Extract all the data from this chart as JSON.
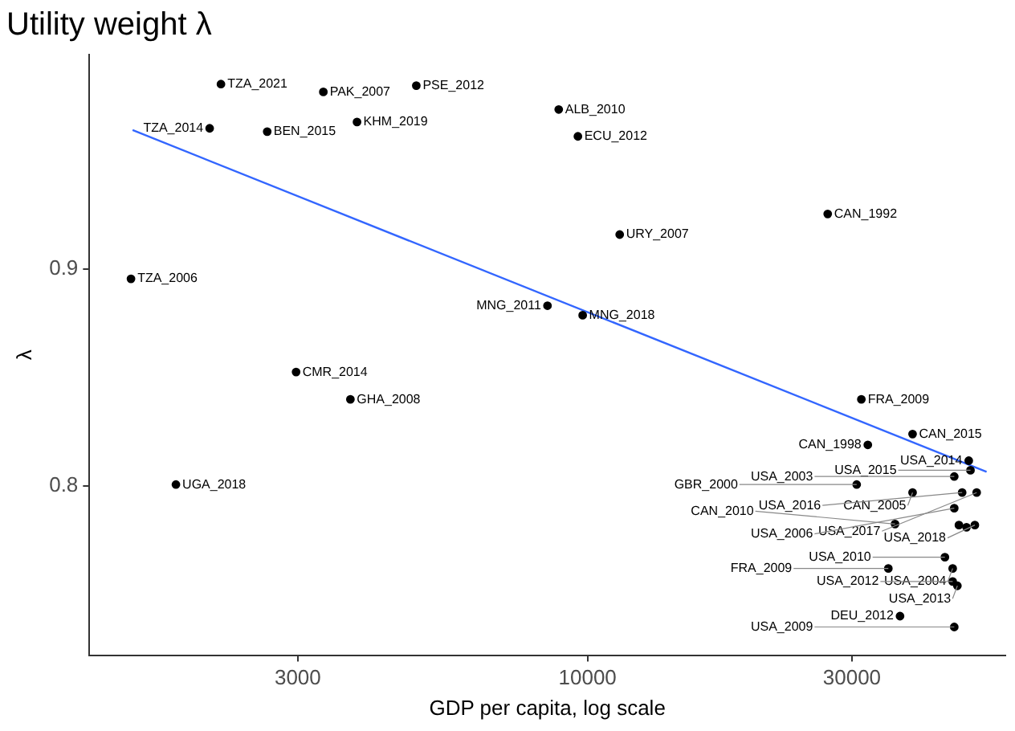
{
  "chart_data": {
    "type": "scatter",
    "title": "Utility weight λ",
    "xlabel": "GDP per capita, log scale",
    "ylabel": "λ",
    "log": "x",
    "xlim": [
      1262,
      56760
    ],
    "ylim": [
      0.722,
      0.999
    ],
    "xticks": [
      3000,
      10000,
      30000
    ],
    "yticks": [
      0.8,
      0.9
    ],
    "grid": false,
    "legend": false,
    "series": [
      {
        "marker": "circle",
        "color": "#000000",
        "x": [
          2180,
          3336,
          4909,
          2080,
          2642,
          3837,
          8872,
          9608,
          11430,
          27130,
          8467,
          9800,
          1500,
          2979,
          3733,
          1808,
          31200,
          38600,
          32050,
          48750,
          49100,
          45900,
          30600,
          38600,
          47430,
          50380,
          45900,
          35890,
          46800,
          50000,
          48300,
          44150,
          45600,
          34900,
          45600,
          46500,
          36640,
          45900
        ],
        "values": [
          0.9854,
          0.9818,
          0.9847,
          0.965,
          0.9635,
          0.9679,
          0.9737,
          0.9613,
          0.916,
          0.9255,
          0.8832,
          0.8788,
          0.8956,
          0.8526,
          0.84,
          0.8007,
          0.84,
          0.824,
          0.819,
          0.8117,
          0.8073,
          0.8044,
          0.8007,
          0.797,
          0.797,
          0.797,
          0.7898,
          0.7825,
          0.782,
          0.782,
          0.781,
          0.7672,
          0.762,
          0.762,
          0.756,
          0.754,
          0.74,
          0.735
        ]
      },
      {
        "type": "line",
        "color": "#3366ff",
        "x": [
          1510,
          52500
        ],
        "values": [
          0.9642,
          0.8066
        ]
      }
    ],
    "annotations": [
      {
        "text": "TZA_2021",
        "x": 2180,
        "y": 0.9854
      },
      {
        "text": "PAK_2007",
        "x": 3336,
        "y": 0.9818
      },
      {
        "text": "PSE_2012",
        "x": 4909,
        "y": 0.9847
      },
      {
        "text": "TZA_2014",
        "x": 2080,
        "y": 0.965
      },
      {
        "text": "BEN_2015",
        "x": 2642,
        "y": 0.9635
      },
      {
        "text": "KHM_2019",
        "x": 3837,
        "y": 0.9679
      },
      {
        "text": "ALB_2010",
        "x": 8872,
        "y": 0.9737
      },
      {
        "text": "ECU_2012",
        "x": 9608,
        "y": 0.9613
      },
      {
        "text": "URY_2007",
        "x": 11430,
        "y": 0.916
      },
      {
        "text": "CAN_1992",
        "x": 27130,
        "y": 0.9255
      },
      {
        "text": "MNG_2011",
        "x": 8467,
        "y": 0.8832
      },
      {
        "text": "MNG_2018",
        "x": 9800,
        "y": 0.8788
      },
      {
        "text": "TZA_2006",
        "x": 1500,
        "y": 0.8956
      },
      {
        "text": "CMR_2014",
        "x": 2979,
        "y": 0.8526
      },
      {
        "text": "GHA_2008",
        "x": 3733,
        "y": 0.84
      },
      {
        "text": "UGA_2018",
        "x": 1808,
        "y": 0.8007
      },
      {
        "text": "FRA_2009",
        "x": 31200,
        "y": 0.84
      },
      {
        "text": "CAN_2015",
        "x": 38600,
        "y": 0.824
      },
      {
        "text": "CAN_1998",
        "x": 32050,
        "y": 0.819
      },
      {
        "text": "USA_2014",
        "x": 48750,
        "y": 0.8117
      },
      {
        "text": "USA_2015",
        "x": 49100,
        "y": 0.8073
      },
      {
        "text": "USA_2003",
        "x": 45900,
        "y": 0.8044
      },
      {
        "text": "GBR_2000",
        "x": 30600,
        "y": 0.8007
      },
      {
        "text": "CAN_2005",
        "x": 38600,
        "y": 0.797
      },
      {
        "text": "USA_2016",
        "x": 47430,
        "y": 0.797
      },
      {
        "text": "USA_2017",
        "x": 50380,
        "y": 0.797
      },
      {
        "text": "USA_2006",
        "x": 45900,
        "y": 0.7898
      },
      {
        "text": "CAN_2010",
        "x": 35890,
        "y": 0.7825
      },
      {
        "text": "USA_2018",
        "x": 50000,
        "y": 0.782
      },
      {
        "text": "USA_2010",
        "x": 44150,
        "y": 0.7672
      },
      {
        "text": "USA_2004",
        "x": 45600,
        "y": 0.762
      },
      {
        "text": "FRA_2009",
        "x": 34900,
        "y": 0.762
      },
      {
        "text": "USA_2012",
        "x": 45600,
        "y": 0.756
      },
      {
        "text": "USA_2013",
        "x": 46500,
        "y": 0.754
      },
      {
        "text": "DEU_2012",
        "x": 36640,
        "y": 0.74
      },
      {
        "text": "USA_2009",
        "x": 45900,
        "y": 0.735
      }
    ]
  }
}
